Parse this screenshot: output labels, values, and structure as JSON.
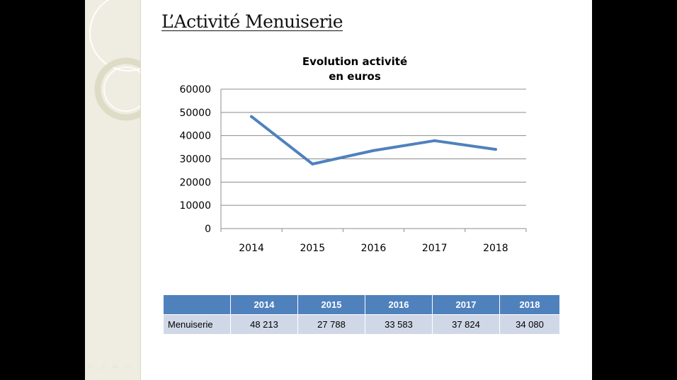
{
  "slide": {
    "title": "L’Activité Menuiserie"
  },
  "chart_data": {
    "type": "line",
    "title": "Evolution activité\nen euros",
    "title_lines": [
      "Evolution activité",
      "en euros"
    ],
    "categories": [
      "2014",
      "2015",
      "2016",
      "2017",
      "2018"
    ],
    "series": [
      {
        "values": [
          48213,
          27788,
          33583,
          37824,
          34080
        ],
        "color": "#4f81bd"
      }
    ],
    "ylim": [
      0,
      60000
    ],
    "yticks": [
      0,
      10000,
      20000,
      30000,
      40000,
      50000,
      60000
    ],
    "grid": true,
    "legend": "none"
  },
  "table": {
    "headers": [
      "",
      "2014",
      "2015",
      "2016",
      "2017",
      "2018"
    ],
    "rows": [
      [
        "Menuiserie",
        "48 213",
        "27 788",
        "33 583",
        "37 824",
        "34 080"
      ]
    ]
  },
  "colors": {
    "accent": "#4f81bd",
    "table_row": "#d0d8e8",
    "side_strip": "#efede2"
  },
  "nav_icons": [
    "back-arrow-icon",
    "pen-icon",
    "menu-icon",
    "forward-arrow-icon"
  ]
}
